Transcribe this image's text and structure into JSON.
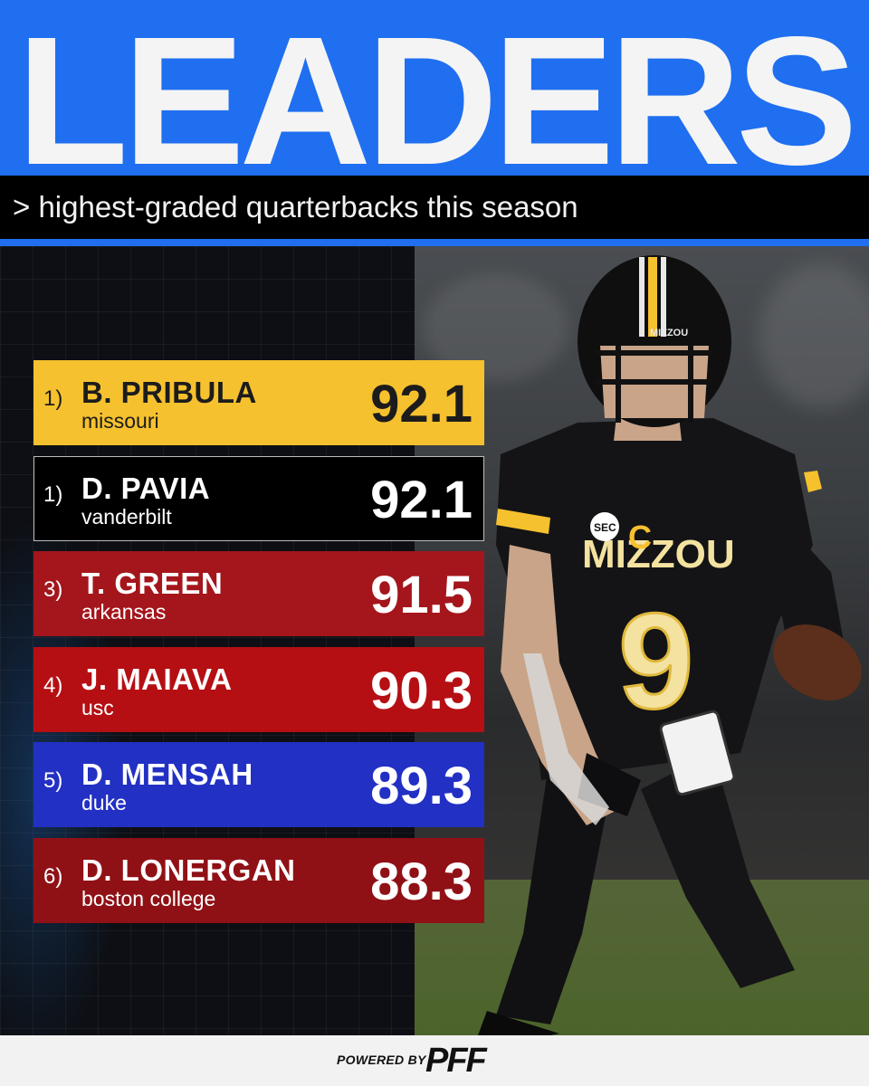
{
  "header": {
    "title": "LEADERS",
    "subtitle": "> highest-graded quarterbacks this season"
  },
  "leaderboard": [
    {
      "rank": "1)",
      "name": "B. PRIBULA",
      "team": "missouri",
      "grade": "92.1",
      "bg": "#f6c12e",
      "text": "#1c1c1c",
      "border": "#f6c12e"
    },
    {
      "rank": "1)",
      "name": "D. PAVIA",
      "team": "vanderbilt",
      "grade": "92.1",
      "bg": "#000000",
      "text": "#ffffff",
      "border": "#bdbdbd"
    },
    {
      "rank": "3)",
      "name": "T. GREEN",
      "team": "arkansas",
      "grade": "91.5",
      "bg": "#a4161c",
      "text": "#ffffff",
      "border": "#a4161c"
    },
    {
      "rank": "4)",
      "name": "J. MAIAVA",
      "team": "usc",
      "grade": "90.3",
      "bg": "#b50f14",
      "text": "#ffffff",
      "border": "#b50f14"
    },
    {
      "rank": "5)",
      "name": "D. MENSAH",
      "team": "duke",
      "grade": "89.3",
      "bg": "#2230c4",
      "text": "#ffffff",
      "border": "#2230c4"
    },
    {
      "rank": "6)",
      "name": "D. LONERGAN",
      "team": "boston college",
      "grade": "88.3",
      "bg": "#8f1116",
      "text": "#ffffff",
      "border": "#8f1116"
    }
  ],
  "photo": {
    "jersey_text": "MIZZOU",
    "jersey_number": "9",
    "helmet_text": "MIZZOU",
    "captain_patch": "C",
    "sec_patch": "SEC"
  },
  "footer": {
    "powered_by": "POWERED BY",
    "brand": "PFF"
  },
  "colors": {
    "header_blue": "#1f6ff0",
    "mizzou_gold": "#f6c12e"
  }
}
